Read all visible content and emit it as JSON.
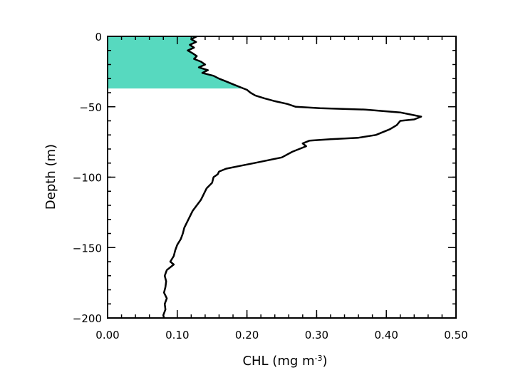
{
  "chart_data": {
    "type": "line",
    "xlabel": "CHL (mg m",
    "xlabel_sup": "-3",
    "xlabel_suffix": ")",
    "ylabel": "Depth (m)",
    "xlim": [
      0.0,
      0.5
    ],
    "ylim": [
      -200,
      0
    ],
    "x_ticks": [
      0.0,
      0.1,
      0.2,
      0.3,
      0.4,
      0.5
    ],
    "x_tick_labels": [
      "0.00",
      "0.10",
      "0.20",
      "0.30",
      "0.40",
      "0.50"
    ],
    "y_ticks": [
      0,
      -50,
      -100,
      -150,
      -200
    ],
    "y_tick_labels": [
      "0",
      "−50",
      "−100",
      "−150",
      "−200"
    ],
    "grid": false,
    "line_color": "#000000",
    "fill_color": "#57d9bf",
    "shaded_region": {
      "depth_from": 0,
      "depth_to": -37
    },
    "series": [
      {
        "points": [
          [
            0.128,
            0
          ],
          [
            0.12,
            -2
          ],
          [
            0.127,
            -4
          ],
          [
            0.118,
            -6
          ],
          [
            0.124,
            -8
          ],
          [
            0.115,
            -10
          ],
          [
            0.122,
            -12
          ],
          [
            0.128,
            -14
          ],
          [
            0.124,
            -16
          ],
          [
            0.134,
            -18
          ],
          [
            0.14,
            -20
          ],
          [
            0.131,
            -22
          ],
          [
            0.144,
            -24
          ],
          [
            0.136,
            -26
          ],
          [
            0.152,
            -28
          ],
          [
            0.16,
            -30
          ],
          [
            0.17,
            -32
          ],
          [
            0.18,
            -34
          ],
          [
            0.19,
            -36
          ],
          [
            0.2,
            -38
          ],
          [
            0.205,
            -40
          ],
          [
            0.212,
            -42
          ],
          [
            0.225,
            -44
          ],
          [
            0.24,
            -46
          ],
          [
            0.258,
            -48
          ],
          [
            0.27,
            -50
          ],
          [
            0.305,
            -51
          ],
          [
            0.37,
            -52
          ],
          [
            0.42,
            -54
          ],
          [
            0.44,
            -56
          ],
          [
            0.45,
            -57
          ],
          [
            0.44,
            -59
          ],
          [
            0.42,
            -60
          ],
          [
            0.415,
            -63
          ],
          [
            0.405,
            -66
          ],
          [
            0.395,
            -68
          ],
          [
            0.385,
            -70
          ],
          [
            0.36,
            -72
          ],
          [
            0.32,
            -73
          ],
          [
            0.29,
            -74
          ],
          [
            0.28,
            -76
          ],
          [
            0.285,
            -78
          ],
          [
            0.265,
            -82
          ],
          [
            0.25,
            -86
          ],
          [
            0.23,
            -88
          ],
          [
            0.21,
            -90
          ],
          [
            0.19,
            -92
          ],
          [
            0.17,
            -94
          ],
          [
            0.16,
            -96
          ],
          [
            0.158,
            -98
          ],
          [
            0.152,
            -100
          ],
          [
            0.15,
            -104
          ],
          [
            0.142,
            -108
          ],
          [
            0.138,
            -112
          ],
          [
            0.134,
            -116
          ],
          [
            0.128,
            -120
          ],
          [
            0.122,
            -124
          ],
          [
            0.118,
            -128
          ],
          [
            0.114,
            -132
          ],
          [
            0.11,
            -136
          ],
          [
            0.108,
            -140
          ],
          [
            0.105,
            -144
          ],
          [
            0.1,
            -148
          ],
          [
            0.097,
            -152
          ],
          [
            0.095,
            -156
          ],
          [
            0.09,
            -160
          ],
          [
            0.095,
            -162
          ],
          [
            0.085,
            -166
          ],
          [
            0.082,
            -170
          ],
          [
            0.084,
            -174
          ],
          [
            0.083,
            -178
          ],
          [
            0.081,
            -182
          ],
          [
            0.085,
            -186
          ],
          [
            0.082,
            -190
          ],
          [
            0.083,
            -194
          ],
          [
            0.08,
            -198
          ],
          [
            0.081,
            -200
          ]
        ]
      }
    ]
  }
}
